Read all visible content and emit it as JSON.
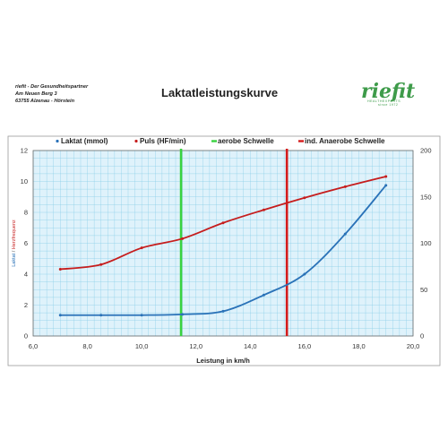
{
  "header": {
    "address_lines": [
      "riefit - Der Gesundheitspartner",
      "Am Neuen Berg 3",
      "63755 Alzenau - Hörstein"
    ],
    "title": "Laktatleistungskurve",
    "logo_word": "riefit",
    "logo_tagline": "HEALTHEXPERTS",
    "logo_since": "since 1972"
  },
  "colors": {
    "background": "#dff2fb",
    "grid": "#8ccfe8",
    "laktat": "#2a72b8",
    "puls": "#c61d1d",
    "aerobe": "#39d23f",
    "anaerobe": "#d41b1b"
  },
  "chart_data": {
    "type": "line",
    "xlabel": "Leistung in km/h",
    "ylabel_left": "Laktat",
    "ylabel_left_sep": "/",
    "ylabel_right": "Herzfrequenz",
    "xlim": [
      6,
      20
    ],
    "ylim_left": [
      0,
      12
    ],
    "ylim_right": [
      0,
      200
    ],
    "x_ticks": [
      "6,0",
      "8,0",
      "10,0",
      "12,0",
      "14,0",
      "16,0",
      "18,0",
      "20,0"
    ],
    "x_tick_values": [
      6,
      8,
      10,
      12,
      14,
      16,
      18,
      20
    ],
    "y_left_ticks": [
      0,
      2,
      4,
      6,
      8,
      10,
      12
    ],
    "y_right_ticks": [
      0,
      50,
      100,
      150,
      200
    ],
    "grid": true,
    "legend_position": "top",
    "series": [
      {
        "name": "Laktat (mmol)",
        "axis": "left",
        "x": [
          7,
          8.5,
          10,
          11.5,
          13,
          14.5,
          16,
          17.5,
          19
        ],
        "y": [
          1.35,
          1.35,
          1.35,
          1.4,
          1.6,
          2.65,
          4.0,
          6.6,
          9.75
        ]
      },
      {
        "name": "Puls (HF/min)",
        "axis": "right",
        "x": [
          7,
          8.5,
          10,
          11.5,
          13,
          14.5,
          16,
          17.5,
          19
        ],
        "y": [
          72,
          77,
          95,
          105,
          122,
          136,
          149,
          161,
          172
        ]
      }
    ],
    "thresholds": [
      {
        "name": "aerobe Schwelle",
        "x": 11.45
      },
      {
        "name": "ind. Anaerobe Schwelle",
        "x": 15.35
      }
    ]
  }
}
